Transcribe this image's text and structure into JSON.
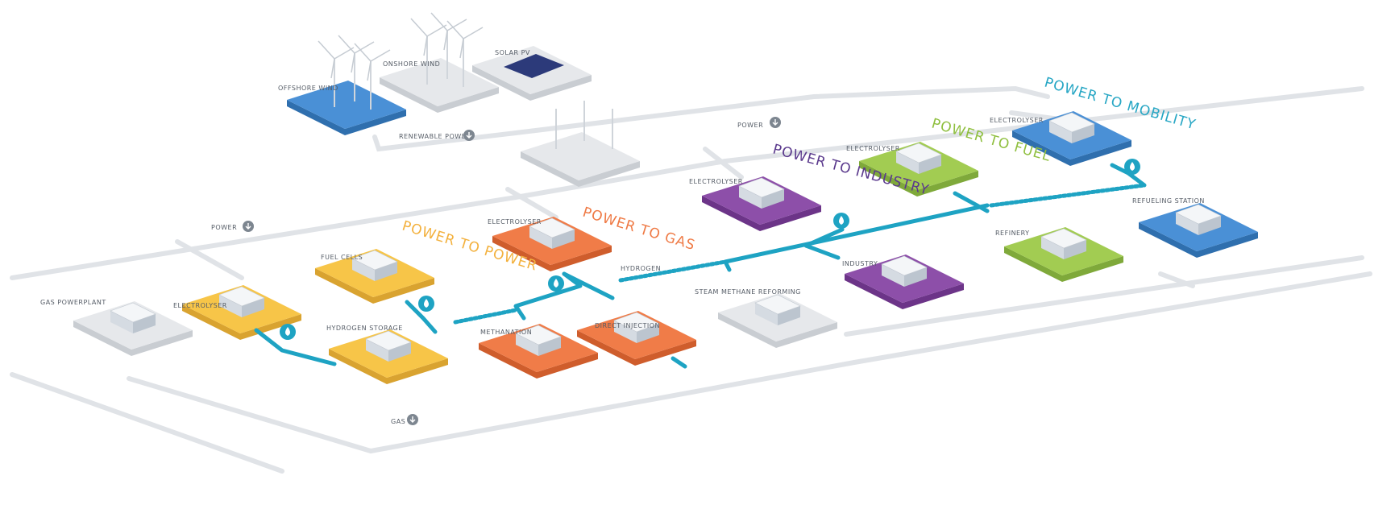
{
  "nodes": [
    {
      "label": "OFFSHORE WIND"
    },
    {
      "label": "ONSHORE WIND"
    },
    {
      "label": "SOLAR PV"
    },
    {
      "label": "GAS POWERPLANT"
    },
    {
      "label": "ELECTROLYSER"
    },
    {
      "label": "FUEL CELLS"
    },
    {
      "label": "HYDROGEN STORAGE"
    },
    {
      "label": "ELECTROLYSER"
    },
    {
      "label": "METHANATION"
    },
    {
      "label": "DIRECT INJECTION"
    },
    {
      "label": "STEAM METHANE REFORMING"
    },
    {
      "label": "ELECTROLYSER"
    },
    {
      "label": "INDUSTRY"
    },
    {
      "label": "ELECTROLYSER"
    },
    {
      "label": "REFINERY"
    },
    {
      "label": "ELECTROLYSER"
    },
    {
      "label": "REFUELING STATION"
    }
  ],
  "flows": [
    "RENEWABLE POWER",
    "POWER",
    "POWER",
    "HYDROGEN",
    "GAS"
  ],
  "sectors": [
    "POWER TO POWER",
    "POWER TO GAS",
    "POWER TO INDUSTRY",
    "POWER TO FUEL",
    "POWER TO MOBILITY"
  ]
}
